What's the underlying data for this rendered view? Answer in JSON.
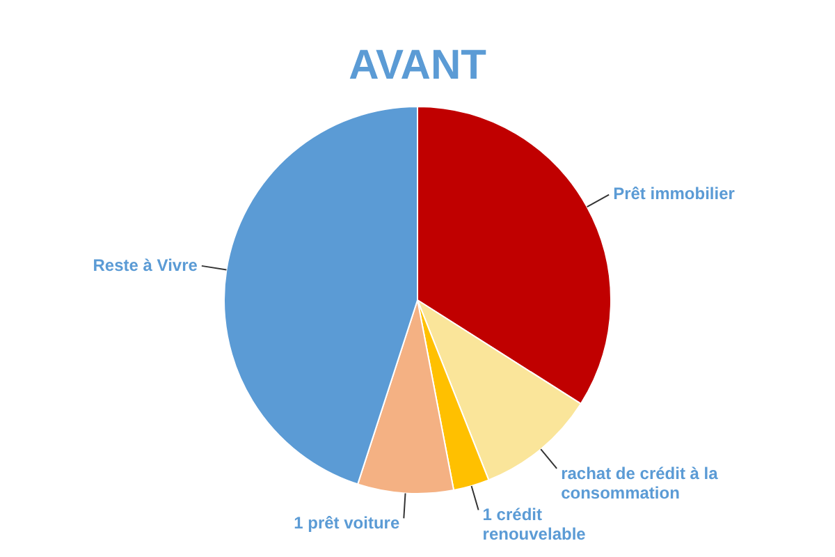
{
  "chart_data": {
    "type": "pie",
    "title": "AVANT",
    "categories": [
      "Prêt immobilier",
      "rachat de crédit à la consommation",
      "1 crédit renouvelable",
      "1 prêt voiture",
      "Reste à Vivre"
    ],
    "values": [
      34,
      10,
      3,
      8,
      45
    ],
    "colors": [
      "#c00000",
      "#fae59a",
      "#ffc000",
      "#f4b183",
      "#5b9bd5"
    ],
    "legend": false
  }
}
